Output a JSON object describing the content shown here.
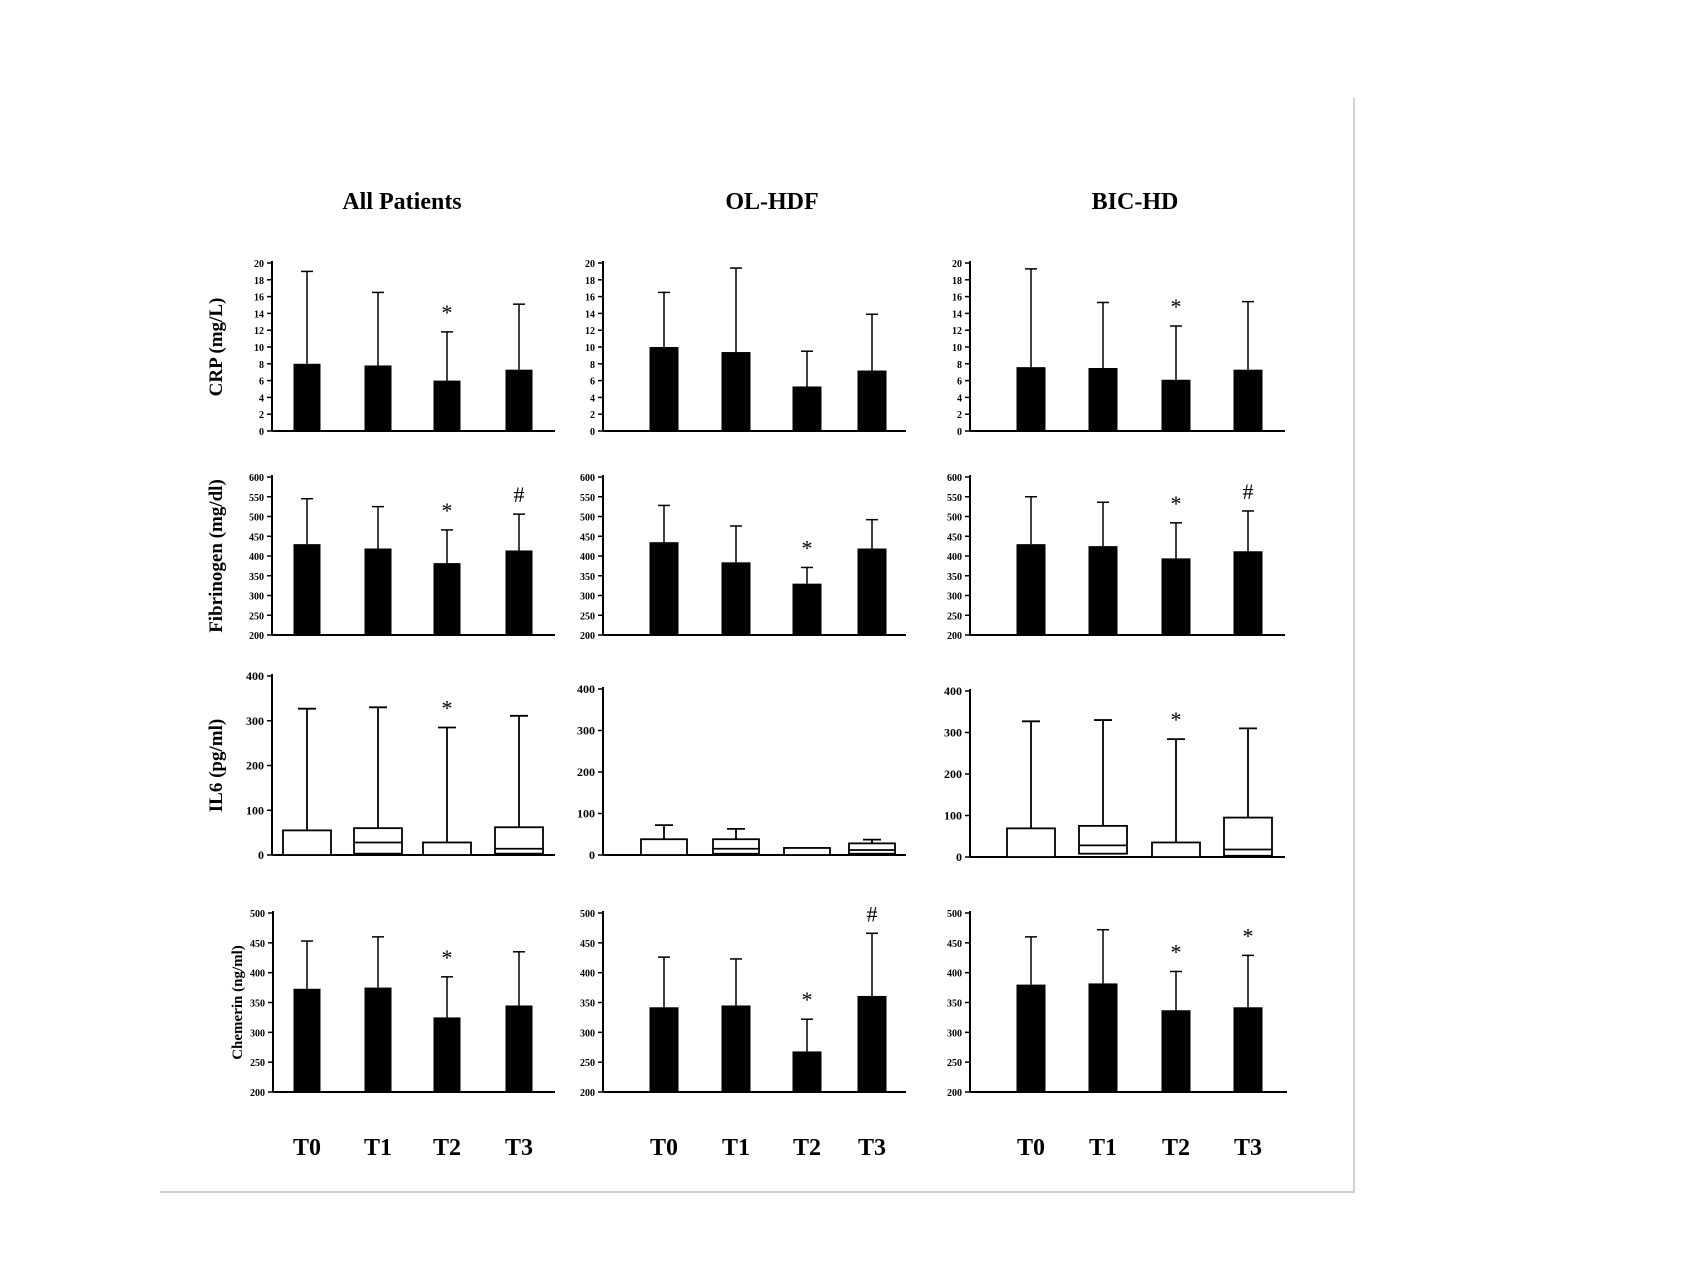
{
  "figure": {
    "columns": [
      "All Patients",
      "OL-HDF",
      "BIC-HD"
    ],
    "rows": [
      "CRP (mg/L)",
      "Fibrinogen (mg/dl)",
      "IL6 (pg/ml)",
      "Chemerin (ng/ml)"
    ],
    "x_ticks": [
      "T0",
      "T1",
      "T2",
      "T3"
    ]
  },
  "chart_data": [
    {
      "type": "bar",
      "panel": "CRP-All",
      "column": "All Patients",
      "ylabel": "CRP (mg/L)",
      "ylim": [
        0,
        20
      ],
      "yticks": [
        0,
        2,
        4,
        6,
        8,
        10,
        12,
        14,
        16,
        18,
        20
      ],
      "categories": [
        "T0",
        "T1",
        "T2",
        "T3"
      ],
      "values": [
        8.0,
        7.8,
        6.0,
        7.3
      ],
      "error_upper": [
        19.0,
        16.5,
        11.8,
        15.1
      ],
      "annotations": [
        "",
        "",
        "*",
        ""
      ]
    },
    {
      "type": "bar",
      "panel": "CRP-OLHDF",
      "column": "OL-HDF",
      "ylabel": "",
      "ylim": [
        0,
        20
      ],
      "yticks": [
        0,
        2,
        4,
        6,
        8,
        10,
        12,
        14,
        16,
        18,
        20
      ],
      "categories": [
        "T0",
        "T1",
        "T2",
        "T3"
      ],
      "values": [
        10.0,
        9.4,
        5.3,
        7.2
      ],
      "error_upper": [
        16.5,
        19.4,
        9.5,
        13.9
      ],
      "annotations": [
        "",
        "",
        "",
        ""
      ]
    },
    {
      "type": "bar",
      "panel": "CRP-BICHD",
      "column": "BIC-HD",
      "ylabel": "",
      "ylim": [
        0,
        20
      ],
      "yticks": [
        0,
        2,
        4,
        6,
        8,
        10,
        12,
        14,
        16,
        18,
        20
      ],
      "categories": [
        "T0",
        "T1",
        "T2",
        "T3"
      ],
      "values": [
        7.6,
        7.5,
        6.1,
        7.3
      ],
      "error_upper": [
        19.3,
        15.3,
        12.5,
        15.4
      ],
      "annotations": [
        "",
        "",
        "*",
        ""
      ]
    },
    {
      "type": "bar",
      "panel": "FIB-All",
      "column": "All Patients",
      "ylabel": "Fibrinogen (mg/dl)",
      "ylim": [
        200,
        600
      ],
      "yticks": [
        200,
        250,
        300,
        350,
        400,
        450,
        500,
        550,
        600
      ],
      "categories": [
        "T0",
        "T1",
        "T2",
        "T3"
      ],
      "values": [
        430,
        419,
        382,
        414
      ],
      "error_upper": [
        545,
        525,
        466,
        506
      ],
      "annotations": [
        "",
        "",
        "*",
        "#"
      ]
    },
    {
      "type": "bar",
      "panel": "FIB-OLHDF",
      "column": "OL-HDF",
      "ylabel": "",
      "ylim": [
        200,
        600
      ],
      "yticks": [
        200,
        250,
        300,
        350,
        400,
        450,
        500,
        550,
        600
      ],
      "categories": [
        "T0",
        "T1",
        "T2",
        "T3"
      ],
      "values": [
        435,
        384,
        330,
        419
      ],
      "error_upper": [
        528,
        476,
        371,
        492
      ],
      "annotations": [
        "",
        "",
        "*",
        ""
      ]
    },
    {
      "type": "bar",
      "panel": "FIB-BICHD",
      "column": "BIC-HD",
      "ylabel": "",
      "ylim": [
        200,
        600
      ],
      "yticks": [
        200,
        250,
        300,
        350,
        400,
        450,
        500,
        550,
        600
      ],
      "categories": [
        "T0",
        "T1",
        "T2",
        "T3"
      ],
      "values": [
        430,
        425,
        394,
        412
      ],
      "error_upper": [
        550,
        536,
        484,
        514
      ],
      "annotations": [
        "",
        "",
        "*",
        "#"
      ]
    },
    {
      "type": "box",
      "panel": "IL6-All",
      "column": "All Patients",
      "ylabel": "IL6 (pg/ml)",
      "ylim": [
        0,
        400
      ],
      "yticks": [
        0,
        100,
        200,
        300,
        400
      ],
      "categories": [
        "T0",
        "T1",
        "T2",
        "T3"
      ],
      "box_low": [
        0,
        3,
        0,
        3
      ],
      "median": [
        null,
        28,
        null,
        14
      ],
      "box_high": [
        55,
        60,
        28,
        62
      ],
      "whisker_high": [
        327,
        330,
        285,
        311
      ],
      "annotations": [
        "",
        "",
        "*",
        ""
      ]
    },
    {
      "type": "box",
      "panel": "IL6-OLHDF",
      "column": "OL-HDF",
      "ylabel": "",
      "ylim": [
        0,
        400
      ],
      "yticks": [
        0,
        100,
        200,
        300,
        400
      ],
      "categories": [
        "T0",
        "T1",
        "T2",
        "T3"
      ],
      "box_low": [
        0,
        3,
        0,
        3
      ],
      "median": [
        null,
        15,
        null,
        12
      ],
      "box_high": [
        38,
        38,
        17,
        28
      ],
      "whisker_high": [
        72,
        63,
        null,
        37
      ],
      "annotations": [
        "",
        "",
        "",
        ""
      ]
    },
    {
      "type": "box",
      "panel": "IL6-BICHD",
      "column": "BIC-HD",
      "ylabel": "",
      "ylim": [
        0,
        400
      ],
      "yticks": [
        0,
        100,
        200,
        300,
        400
      ],
      "categories": [
        "T0",
        "T1",
        "T2",
        "T3"
      ],
      "box_low": [
        0,
        8,
        0,
        3
      ],
      "median": [
        null,
        28,
        null,
        18
      ],
      "box_high": [
        69,
        75,
        35,
        95
      ],
      "whisker_high": [
        327,
        330,
        284,
        310
      ],
      "annotations": [
        "",
        "",
        "*",
        ""
      ]
    },
    {
      "type": "bar",
      "panel": "CHEM-All",
      "column": "All Patients",
      "ylabel": "Chemerin (ng/ml)",
      "ylim": [
        200,
        500
      ],
      "yticks": [
        200,
        250,
        300,
        350,
        400,
        450,
        500
      ],
      "categories": [
        "T0",
        "T1",
        "T2",
        "T3"
      ],
      "values": [
        373,
        375,
        325,
        345
      ],
      "error_upper": [
        453,
        460,
        393,
        435
      ],
      "annotations": [
        "",
        "",
        "*",
        ""
      ]
    },
    {
      "type": "bar",
      "panel": "CHEM-OLHDF",
      "column": "OL-HDF",
      "ylabel": "",
      "ylim": [
        200,
        500
      ],
      "yticks": [
        200,
        250,
        300,
        350,
        400,
        450,
        500
      ],
      "categories": [
        "T0",
        "T1",
        "T2",
        "T3"
      ],
      "values": [
        342,
        345,
        268,
        361
      ],
      "error_upper": [
        426,
        423,
        322,
        466
      ],
      "annotations": [
        "",
        "",
        "*",
        "#"
      ]
    },
    {
      "type": "bar",
      "panel": "CHEM-BICHD",
      "column": "BIC-HD",
      "ylabel": "",
      "ylim": [
        200,
        500
      ],
      "yticks": [
        200,
        250,
        300,
        350,
        400,
        450,
        500
      ],
      "categories": [
        "T0",
        "T1",
        "T2",
        "T3"
      ],
      "values": [
        380,
        382,
        337,
        342
      ],
      "error_upper": [
        460,
        472,
        402,
        429
      ],
      "annotations": [
        "",
        "",
        "*",
        "*"
      ]
    }
  ]
}
